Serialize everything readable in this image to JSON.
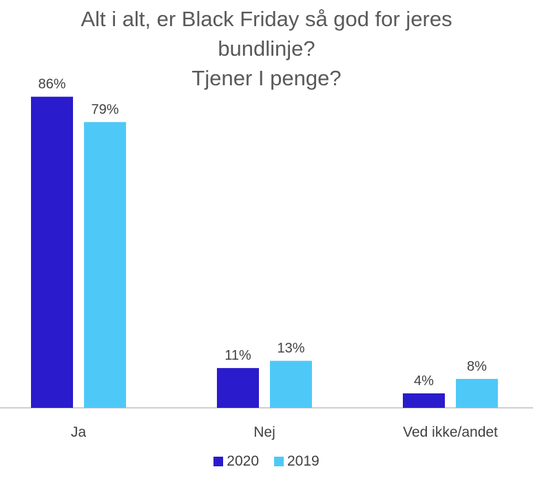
{
  "chart_data": {
    "type": "bar",
    "title_lines": [
      "Alt i alt, er Black Friday så god for jeres",
      "bundlinje?",
      "Tjener I penge?"
    ],
    "categories": [
      "Ja",
      "Nej",
      "Ved ikke/andet"
    ],
    "series": [
      {
        "name": "2020",
        "color": "#2a1bcc",
        "values": [
          86,
          11,
          4
        ]
      },
      {
        "name": "2019",
        "color": "#4ec9f7",
        "values": [
          79,
          13,
          8
        ]
      }
    ],
    "value_suffix": "%",
    "ylim": [
      0,
      100
    ],
    "grid": false,
    "legend_position": "bottom",
    "xlabel": "",
    "ylabel": ""
  }
}
